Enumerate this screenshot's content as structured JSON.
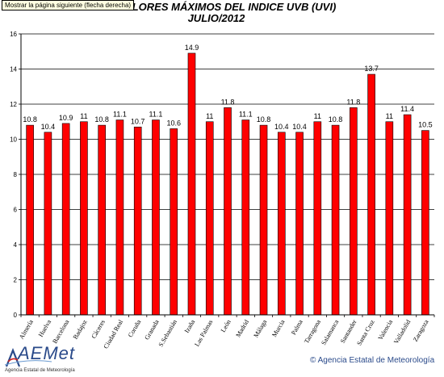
{
  "tooltip": "Mostrar la página siguiente (flecha derecha)",
  "chart_data": {
    "type": "bar",
    "title": "VALORES MÁXIMOS DEL INDICE UVB (UVI)",
    "title_visible": "LORES MÁXIMOS DEL INDICE UVB (UVI)",
    "subtitle": "JULIO/2012",
    "xlabel": "",
    "ylabel": "",
    "ylim": [
      0,
      16
    ],
    "yticks": [
      0,
      2,
      4,
      6,
      8,
      10,
      12,
      14,
      16
    ],
    "grid": true,
    "legend": "none",
    "bar_color": "#ff0000",
    "categories": [
      "Almería",
      "Huelva",
      "Barcelona",
      "Badajoz",
      "Cáceres",
      "Ciudad Real",
      "Coruña",
      "Granada",
      "S.Sebastián",
      "Izaña",
      "Las Palmas",
      "León",
      "Madrid",
      "Málaga",
      "Murcia",
      "Palma",
      "Tarragona",
      "Salamanca",
      "Santander",
      "Santa Cruz",
      "Valencia",
      "Valladolid",
      "Zaragoza"
    ],
    "values": [
      10.8,
      10.4,
      10.9,
      11,
      10.8,
      11.1,
      10.7,
      11.1,
      10.6,
      14.9,
      11,
      11.8,
      11.1,
      10.8,
      10.4,
      10.4,
      11,
      10.8,
      11.8,
      13.7,
      11,
      11.4,
      10.5
    ],
    "value_labels": [
      "10.8",
      "10.4",
      "10.9",
      "11",
      "10.8",
      "11.1",
      "10.7",
      "11.1",
      "10.6",
      "14.9",
      "11",
      "11.8",
      "11.1",
      "10.8",
      "10.4",
      "10.4",
      "11",
      "10.8",
      "11.8",
      "13.7",
      "11",
      "11.4",
      "10.5"
    ]
  },
  "footer": {
    "logo_text": "AEMet",
    "logo_subtitle": "Agencia Estatal de Meteorología",
    "copyright": "© Agencia Estatal de Meteorología"
  }
}
